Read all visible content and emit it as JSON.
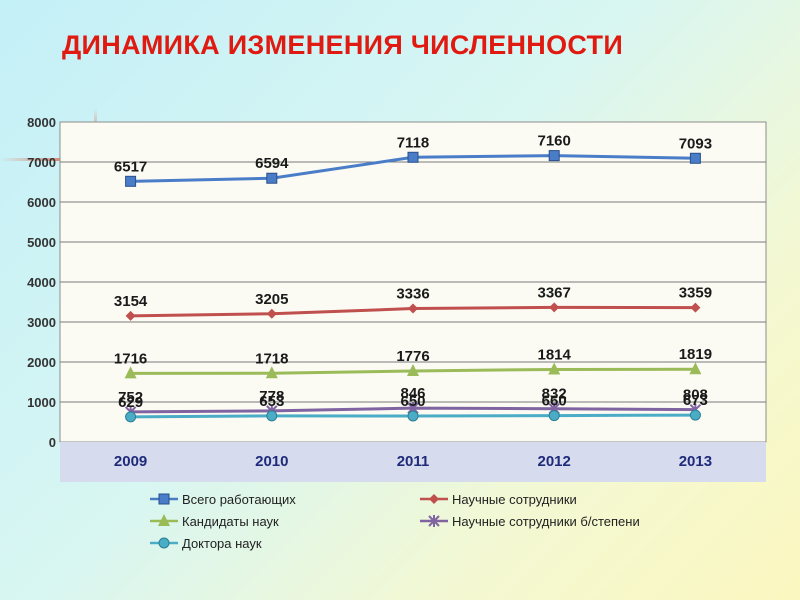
{
  "title": "ДИНАМИКА ИЗМЕНЕНИЯ ЧИСЛЕННОСТИ",
  "chart_data": {
    "type": "line",
    "title": "ДИНАМИКА ИЗМЕНЕНИЯ ЧИСЛЕННОСТИ",
    "categories": [
      "2009",
      "2010",
      "2011",
      "2012",
      "2013"
    ],
    "ylim": [
      0,
      8000
    ],
    "yticks": [
      0,
      1000,
      2000,
      3000,
      4000,
      5000,
      6000,
      7000,
      8000
    ],
    "grid": true,
    "legend_position": "bottom",
    "series": [
      {
        "name": "Всего работающих",
        "values": [
          6517,
          6594,
          7118,
          7160,
          7093
        ],
        "color": "#4a7dc8",
        "marker": "square"
      },
      {
        "name": "Научные сотрудники",
        "values": [
          3154,
          3205,
          3336,
          3367,
          3359
        ],
        "color": "#c0504d",
        "marker": "diamond"
      },
      {
        "name": "Кандидаты наук",
        "values": [
          1716,
          1718,
          1776,
          1814,
          1819
        ],
        "color": "#9bbb59",
        "marker": "triangle"
      },
      {
        "name": "Научные сотрудники б/степени",
        "values": [
          752,
          778,
          846,
          832,
          808
        ],
        "color": "#8064a2",
        "marker": "star"
      },
      {
        "name": "Доктора наук",
        "values": [
          629,
          653,
          650,
          660,
          673
        ],
        "color": "#4bacc6",
        "marker": "circle"
      }
    ]
  }
}
